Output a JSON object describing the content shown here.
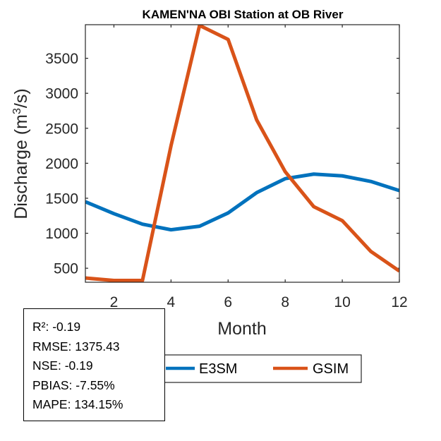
{
  "chart_data": {
    "type": "line",
    "title": "KAMEN'NA OBI  Station at  OB  River",
    "xlabel": "Month",
    "ylabel_prefix": "Discharge (m",
    "ylabel_sup": "3",
    "ylabel_suffix": "/s)",
    "xlim": [
      1,
      12
    ],
    "ylim": [
      300,
      3980
    ],
    "x_ticks": [
      "2",
      "4",
      "6",
      "8",
      "10",
      "12"
    ],
    "y_ticks": [
      "500",
      "1000",
      "1500",
      "2000",
      "2500",
      "3000",
      "3500"
    ],
    "x": [
      1,
      2,
      3,
      4,
      5,
      6,
      7,
      8,
      9,
      10,
      11,
      12
    ],
    "series": [
      {
        "name": "E3SM",
        "color": "#0072BD",
        "values": [
          1450,
          1280,
          1130,
          1050,
          1100,
          1290,
          1580,
          1780,
          1845,
          1820,
          1740,
          1610
        ]
      },
      {
        "name": "GSIM",
        "color": "#D95319",
        "values": [
          360,
          325,
          325,
          2250,
          3970,
          3770,
          2620,
          1880,
          1380,
          1180,
          740,
          460
        ]
      }
    ],
    "legend": [
      "E3SM",
      "GSIM"
    ],
    "stats": [
      "R²: -0.19",
      "RMSE: 1375.43",
      "NSE: -0.19",
      "PBIAS: -7.55%",
      "MAPE: 134.15%"
    ]
  }
}
